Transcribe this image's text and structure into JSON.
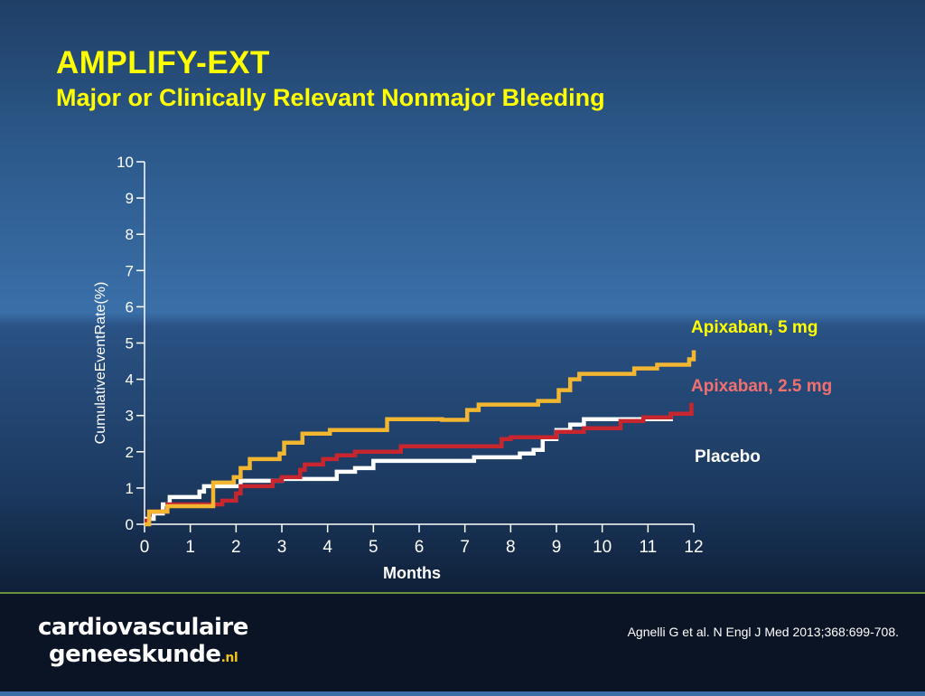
{
  "title": "AMPLIFY-EXT",
  "subtitle": "Major or Clinically Relevant Nonmajor Bleeding",
  "chart_data": {
    "type": "line",
    "xlabel": "Months",
    "ylabel": "CumulativeEventRate(%)",
    "xlim": [
      0,
      12
    ],
    "ylim": [
      0,
      10
    ],
    "xticks": [
      0,
      1,
      2,
      3,
      4,
      5,
      6,
      7,
      8,
      9,
      10,
      11,
      12
    ],
    "yticks": [
      0,
      1,
      2,
      3,
      4,
      5,
      6,
      7,
      8,
      9,
      10
    ],
    "step": true,
    "grid": false,
    "series": [
      {
        "name": "Apixaban, 5 mg",
        "color": "#f2b630",
        "label_color": "#ffff00",
        "points": [
          [
            0,
            0
          ],
          [
            0.1,
            0.35
          ],
          [
            0.5,
            0.5
          ],
          [
            1.5,
            1.15
          ],
          [
            1.95,
            1.3
          ],
          [
            2.1,
            1.55
          ],
          [
            2.3,
            1.8
          ],
          [
            2.95,
            1.95
          ],
          [
            3.05,
            2.25
          ],
          [
            3.45,
            2.5
          ],
          [
            4.05,
            2.6
          ],
          [
            5.3,
            2.9
          ],
          [
            6.5,
            2.88
          ],
          [
            7.05,
            3.15
          ],
          [
            7.3,
            3.3
          ],
          [
            8.6,
            3.4
          ],
          [
            9.05,
            3.7
          ],
          [
            9.3,
            4.0
          ],
          [
            9.5,
            4.15
          ],
          [
            10.7,
            4.3
          ],
          [
            11.2,
            4.4
          ],
          [
            11.9,
            4.55
          ],
          [
            12.0,
            4.8
          ]
        ]
      },
      {
        "name": "Apixaban, 2.5 mg",
        "color": "#c8262e",
        "label_color": "#f07070",
        "points": [
          [
            0,
            0.1
          ],
          [
            0.1,
            0.35
          ],
          [
            0.5,
            0.55
          ],
          [
            1.7,
            0.65
          ],
          [
            2.0,
            0.85
          ],
          [
            2.1,
            1.05
          ],
          [
            2.8,
            1.2
          ],
          [
            3.0,
            1.3
          ],
          [
            3.4,
            1.5
          ],
          [
            3.5,
            1.65
          ],
          [
            3.9,
            1.8
          ],
          [
            4.2,
            1.9
          ],
          [
            4.6,
            2.0
          ],
          [
            5.6,
            2.15
          ],
          [
            7.8,
            2.35
          ],
          [
            8.0,
            2.4
          ],
          [
            9.0,
            2.55
          ],
          [
            9.6,
            2.65
          ],
          [
            10.4,
            2.85
          ],
          [
            10.9,
            2.95
          ],
          [
            11.5,
            3.05
          ],
          [
            11.95,
            3.35
          ]
        ]
      },
      {
        "name": "Placebo",
        "color": "#ffffff",
        "label_color": "#ffffff",
        "points": [
          [
            0,
            0.15
          ],
          [
            0.2,
            0.3
          ],
          [
            0.4,
            0.55
          ],
          [
            0.55,
            0.75
          ],
          [
            1.2,
            0.9
          ],
          [
            1.3,
            1.05
          ],
          [
            2.1,
            1.2
          ],
          [
            3.0,
            1.25
          ],
          [
            4.2,
            1.45
          ],
          [
            4.6,
            1.55
          ],
          [
            5.0,
            1.75
          ],
          [
            7.2,
            1.85
          ],
          [
            8.2,
            1.95
          ],
          [
            8.5,
            2.05
          ],
          [
            8.7,
            2.35
          ],
          [
            9.0,
            2.6
          ],
          [
            9.3,
            2.75
          ],
          [
            9.6,
            2.9
          ],
          [
            11.5,
            3.05
          ],
          [
            11.95,
            3.05
          ]
        ]
      }
    ]
  },
  "logo": {
    "line1": "cardiovasculaire",
    "line2": "geneeskunde",
    "suffix": ".nl"
  },
  "citation": "Agnelli G et al. N Engl J Med 2013;368:699-708."
}
